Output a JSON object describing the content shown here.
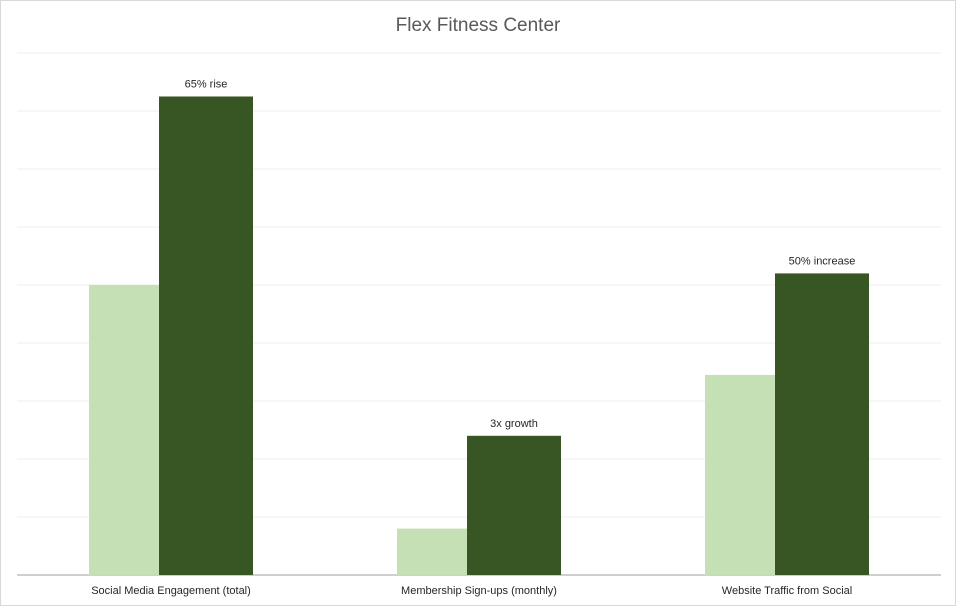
{
  "chart_data": {
    "type": "bar",
    "title": "Flex Fitness Center",
    "categories": [
      "Social Media Engagement (total)",
      "Membership Sign-ups (monthly)",
      "Website Traffic from Social"
    ],
    "series": [
      {
        "color": "#c5e0b4",
        "values": [
          100,
          16,
          69
        ]
      },
      {
        "color": "#375623",
        "values": [
          165,
          48,
          104
        ]
      }
    ],
    "data_labels": [
      "65% rise",
      "3x growth",
      "50% increase"
    ],
    "ylim": [
      0,
      180
    ],
    "grid": true,
    "legend": "none",
    "axis_color": "#bfbfbf",
    "grid_color": "#ececec"
  }
}
